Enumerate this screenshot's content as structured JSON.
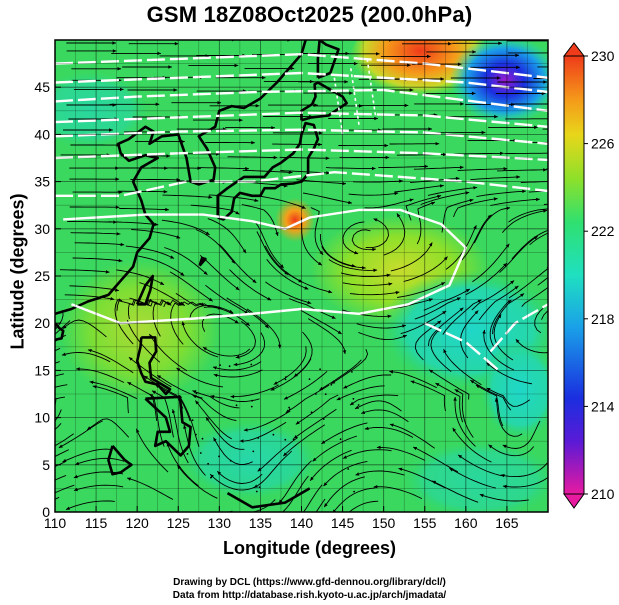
{
  "title": "GSM 18Z08Oct2025 (200.0hPa)",
  "xaxis_label": "Longitude (degrees)",
  "yaxis_label": "Latitude  (degrees)",
  "credits": [
    "Drawing by DCL (https://www.gfd-dennou.org/library/dcl/)",
    "Data from http://database.rish.kyoto-u.ac.jp/arch/jmadata/"
  ],
  "map": {
    "lon_range": [
      110,
      170
    ],
    "lat_range": [
      0,
      50
    ],
    "lon_ticks": [
      "110",
      "115",
      "120",
      "125",
      "130",
      "135",
      "140",
      "145",
      "150",
      "155",
      "160",
      "165"
    ],
    "lat_ticks": [
      "0",
      "5",
      "10",
      "15",
      "20",
      "25",
      "30",
      "35",
      "40",
      "45"
    ],
    "field": "temperature (K)",
    "colors": {
      "background_field": "#2fd66a",
      "warm": "#f7a21a",
      "cool": "#1fd7c8",
      "cold": "#2a3fd6"
    }
  },
  "colorbar": {
    "min": 210,
    "max": 230,
    "labels": [
      "230",
      "226",
      "222",
      "218",
      "214",
      "210"
    ],
    "colors": [
      "#e81aa0",
      "#5a1ad6",
      "#1a2fe0",
      "#1aa0e8",
      "#1fe0c0",
      "#2fe070",
      "#8ee02a",
      "#e8d61a",
      "#f59a1a",
      "#ef3b1a"
    ]
  }
}
